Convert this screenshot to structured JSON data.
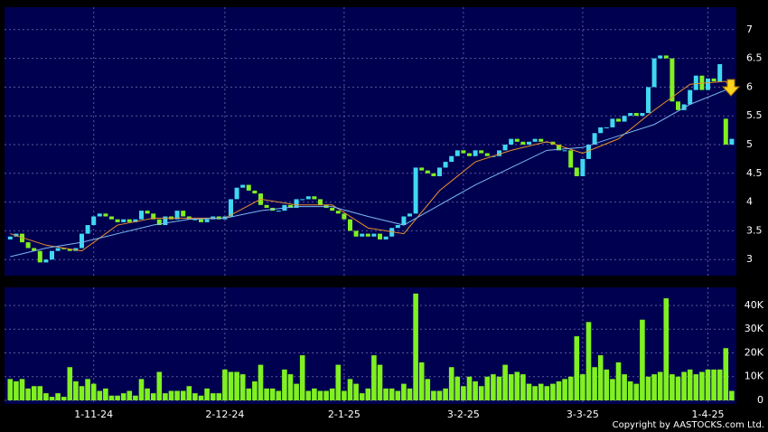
{
  "chart_data": {
    "type": "candlestick",
    "categories": [
      null,
      null,
      null,
      null,
      null,
      null,
      null,
      null,
      null,
      null,
      null,
      null,
      null,
      null,
      "1-11-24",
      null,
      null,
      null,
      null,
      null,
      null,
      null,
      null,
      null,
      null,
      null,
      null,
      null,
      null,
      null,
      null,
      null,
      null,
      null,
      null,
      null,
      "2-12-24",
      null,
      null,
      null,
      null,
      null,
      null,
      null,
      null,
      null,
      null,
      null,
      null,
      null,
      null,
      null,
      null,
      null,
      null,
      null,
      "2-1-25",
      null,
      null,
      null,
      null,
      null,
      null,
      null,
      null,
      null,
      null,
      null,
      null,
      null,
      null,
      null,
      null,
      null,
      null,
      null,
      "3-2-25",
      null,
      null,
      null,
      null,
      null,
      null,
      null,
      null,
      null,
      null,
      null,
      null,
      null,
      null,
      null,
      null,
      null,
      null,
      null,
      "3-3-25",
      null,
      null,
      null,
      null,
      null,
      null,
      null,
      null,
      null,
      null,
      null,
      null,
      null,
      null,
      null,
      null,
      null,
      null,
      null,
      null,
      "1-4-25",
      null,
      null,
      null,
      null
    ],
    "open": [
      3.35,
      3.4,
      3.45,
      3.3,
      3.2,
      3.15,
      2.95,
      3.0,
      3.15,
      3.2,
      3.18,
      3.15,
      3.2,
      3.45,
      3.6,
      3.75,
      3.8,
      3.75,
      3.7,
      3.65,
      3.7,
      3.65,
      3.7,
      3.85,
      3.8,
      3.7,
      3.6,
      3.75,
      3.7,
      3.85,
      3.75,
      3.7,
      3.7,
      3.65,
      3.7,
      3.75,
      3.7,
      3.75,
      4.05,
      4.25,
      4.3,
      4.2,
      4.15,
      3.95,
      3.9,
      3.85,
      3.85,
      3.95,
      3.9,
      4.05,
      4.05,
      4.1,
      4.05,
      3.95,
      3.9,
      3.85,
      3.8,
      3.7,
      3.5,
      3.4,
      3.45,
      3.4,
      3.45,
      3.35,
      3.4,
      3.55,
      3.6,
      3.75,
      3.8,
      4.6,
      4.55,
      4.5,
      4.45,
      4.6,
      4.7,
      4.8,
      4.9,
      4.85,
      4.8,
      4.9,
      4.85,
      4.8,
      4.8,
      4.9,
      5.0,
      5.1,
      5.05,
      5.0,
      5.05,
      5.1,
      5.05,
      5.05,
      5.0,
      4.9,
      4.9,
      4.6,
      4.45,
      4.75,
      5.0,
      5.2,
      5.3,
      5.3,
      5.45,
      5.4,
      5.5,
      5.55,
      5.5,
      5.55,
      6.0,
      6.5,
      6.55,
      6.5,
      5.75,
      5.6,
      5.7,
      5.95,
      6.2,
      5.95,
      6.15,
      6.1,
      5.45,
      5.0
    ],
    "close": [
      3.4,
      3.45,
      3.3,
      3.2,
      3.15,
      2.95,
      3.0,
      3.15,
      3.2,
      3.18,
      3.15,
      3.2,
      3.45,
      3.6,
      3.75,
      3.8,
      3.75,
      3.7,
      3.65,
      3.7,
      3.65,
      3.7,
      3.85,
      3.8,
      3.7,
      3.6,
      3.75,
      3.7,
      3.85,
      3.75,
      3.7,
      3.7,
      3.65,
      3.7,
      3.75,
      3.7,
      3.75,
      4.05,
      4.25,
      4.3,
      4.2,
      4.15,
      3.95,
      3.9,
      3.85,
      3.85,
      3.95,
      3.9,
      4.05,
      4.05,
      4.1,
      4.05,
      3.95,
      3.9,
      3.85,
      3.8,
      3.7,
      3.5,
      3.4,
      3.45,
      3.4,
      3.45,
      3.35,
      3.4,
      3.55,
      3.6,
      3.75,
      3.8,
      4.6,
      4.55,
      4.5,
      4.45,
      4.6,
      4.7,
      4.8,
      4.9,
      4.85,
      4.8,
      4.9,
      4.85,
      4.8,
      4.8,
      4.9,
      5.0,
      5.1,
      5.05,
      5.0,
      5.05,
      5.1,
      5.05,
      5.05,
      5.0,
      4.9,
      4.9,
      4.6,
      4.45,
      4.75,
      5.0,
      5.2,
      5.3,
      5.3,
      5.45,
      5.4,
      5.5,
      5.55,
      5.5,
      5.55,
      6.0,
      6.5,
      6.55,
      6.5,
      5.75,
      5.6,
      5.7,
      5.95,
      6.2,
      5.95,
      6.15,
      6.1,
      6.4,
      5.0,
      5.1
    ],
    "up_color": "#40d8f0",
    "down_color": "#80f020",
    "ma_series": [
      {
        "color": "#e8902a",
        "x": [
          0,
          6,
          12,
          18,
          24,
          30,
          36,
          42,
          48,
          54,
          60,
          66,
          72,
          78,
          84,
          90,
          96,
          102,
          108,
          114,
          120,
          121
        ],
        "values": [
          3.45,
          3.25,
          3.15,
          3.6,
          3.72,
          3.72,
          3.72,
          4.05,
          3.95,
          3.95,
          3.55,
          3.45,
          4.2,
          4.7,
          4.9,
          5.05,
          4.85,
          5.1,
          5.6,
          6.05,
          6.1,
          5.95
        ]
      },
      {
        "color": "#7ab8f0",
        "x": [
          0,
          6,
          12,
          18,
          24,
          30,
          36,
          42,
          48,
          54,
          60,
          66,
          72,
          78,
          84,
          90,
          96,
          102,
          108,
          114,
          120,
          121
        ],
        "values": [
          3.05,
          3.2,
          3.3,
          3.45,
          3.6,
          3.7,
          3.72,
          3.85,
          3.92,
          3.92,
          3.75,
          3.6,
          3.95,
          4.3,
          4.6,
          4.9,
          4.95,
          5.15,
          5.35,
          5.7,
          5.95,
          5.9
        ]
      }
    ],
    "ylim": [
      2.72,
      7.39
    ],
    "yticks": [
      3,
      3.5,
      4,
      4.5,
      5,
      5.5,
      6,
      6.5,
      7
    ],
    "grid": true,
    "volume": {
      "color": "#80f020",
      "values": [
        9000,
        8000,
        9000,
        5000,
        6000,
        6000,
        3000,
        1500,
        3000,
        1500,
        14000,
        8000,
        6000,
        9000,
        7000,
        4000,
        5000,
        2000,
        2000,
        3000,
        4000,
        2000,
        9000,
        5000,
        3000,
        12000,
        3000,
        4000,
        4000,
        4000,
        6000,
        3000,
        2000,
        5000,
        3000,
        3000,
        13000,
        12000,
        12000,
        11000,
        5000,
        8000,
        15000,
        5000,
        5000,
        4000,
        13000,
        11000,
        7000,
        19000,
        4000,
        5000,
        4000,
        4000,
        5000,
        15000,
        4000,
        9000,
        7000,
        3000,
        5000,
        19000,
        15000,
        5000,
        5000,
        4000,
        7000,
        5000,
        45000,
        16000,
        9000,
        4000,
        4000,
        5000,
        14000,
        10000,
        6000,
        10000,
        8000,
        6000,
        10000,
        11000,
        10000,
        15000,
        11000,
        12000,
        11000,
        7000,
        6000,
        7000,
        6000,
        7000,
        8000,
        9000,
        10000,
        27000,
        11000,
        33000,
        14000,
        19000,
        13000,
        9000,
        16000,
        11000,
        8000,
        7000,
        34000,
        10000,
        11000,
        12000,
        43000,
        11000,
        10000,
        12000,
        13000,
        11000,
        12000,
        13000,
        13000,
        13000,
        22000,
        4000
      ],
      "ylim": [
        0,
        47600
      ],
      "yticks": [
        0,
        {
          "value": 10000,
          "label": "10K"
        },
        {
          "value": 20000,
          "label": "20K"
        },
        {
          "value": 30000,
          "label": "30K"
        },
        {
          "value": 40000,
          "label": "40K"
        }
      ]
    },
    "copyright": "Copyright by AASTOCKS.com Ltd."
  }
}
